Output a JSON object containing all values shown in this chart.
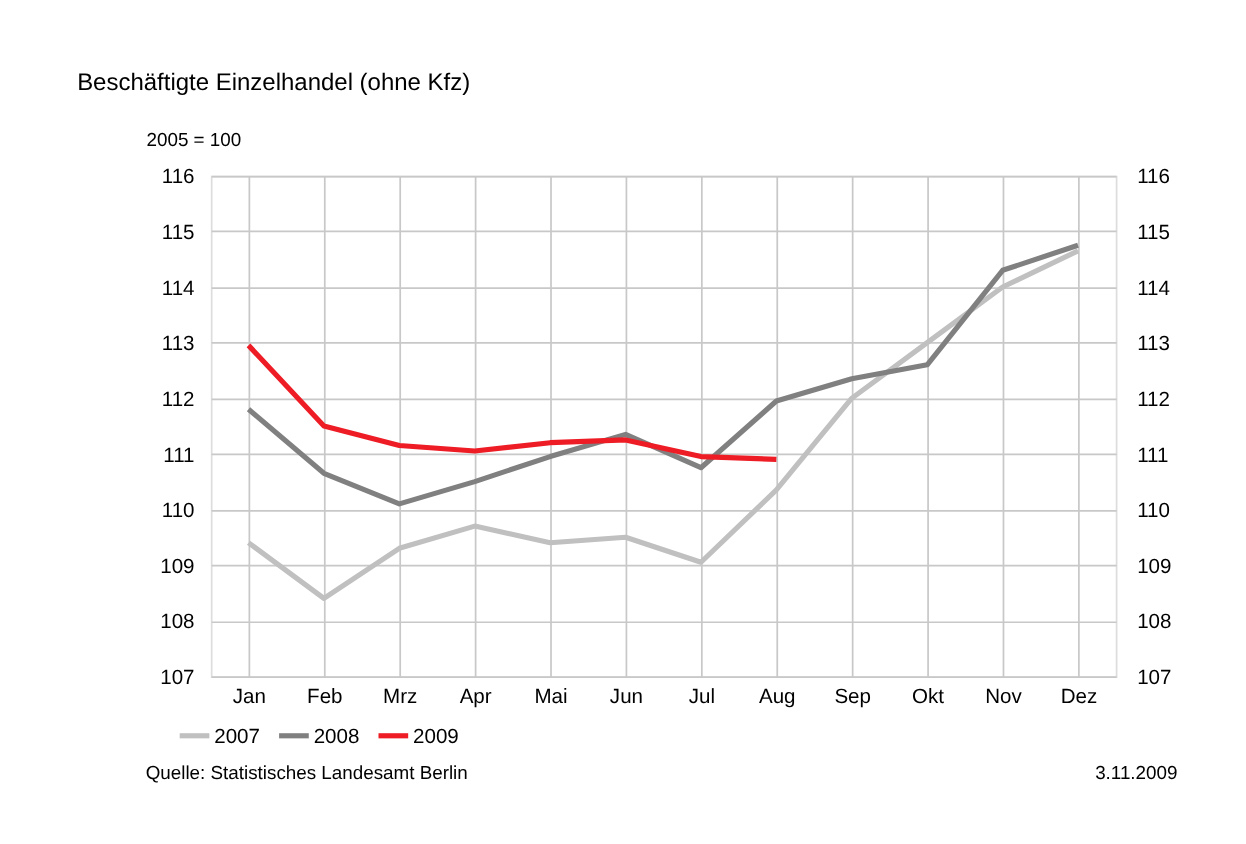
{
  "chart_data": {
    "type": "line",
    "title": "Beschäftigte Einzelhandel (ohne Kfz)",
    "ylabel": "2005 = 100",
    "categories": [
      "Jan",
      "Feb",
      "Mrz",
      "Apr",
      "Mai",
      "Jun",
      "Jul",
      "Aug",
      "Sep",
      "Okt",
      "Nov",
      "Dez"
    ],
    "series": [
      {
        "name": "2007",
        "color": "#c0c0c0",
        "values": [
          109.4,
          108.4,
          109.3,
          109.7,
          109.4,
          109.5,
          109.05,
          110.35,
          112.0,
          113.0,
          114.0,
          114.65
        ]
      },
      {
        "name": "2008",
        "color": "#808080",
        "values": [
          111.8,
          110.65,
          110.1,
          110.5,
          110.95,
          111.35,
          110.75,
          111.95,
          112.35,
          112.6,
          114.3,
          114.75
        ]
      },
      {
        "name": "2009",
        "color": "#ee1c25",
        "values": [
          112.95,
          111.5,
          111.15,
          111.05,
          111.2,
          111.25,
          110.95,
          110.9,
          null,
          null,
          null,
          null
        ]
      }
    ],
    "ylim": [
      107,
      116
    ],
    "yticks": [
      107,
      108,
      109,
      110,
      111,
      112,
      113,
      114,
      115,
      116
    ],
    "y2lim": [
      107,
      116
    ],
    "y2ticks": [
      107,
      108,
      109,
      110,
      111,
      112,
      113,
      114,
      115,
      116
    ],
    "grid": true,
    "legend": "bottom left",
    "marker": "none",
    "line_style": "solid",
    "annotations": [
      "Quelle: Statistisches Landesamt Berlin",
      "3.11.2009"
    ]
  }
}
